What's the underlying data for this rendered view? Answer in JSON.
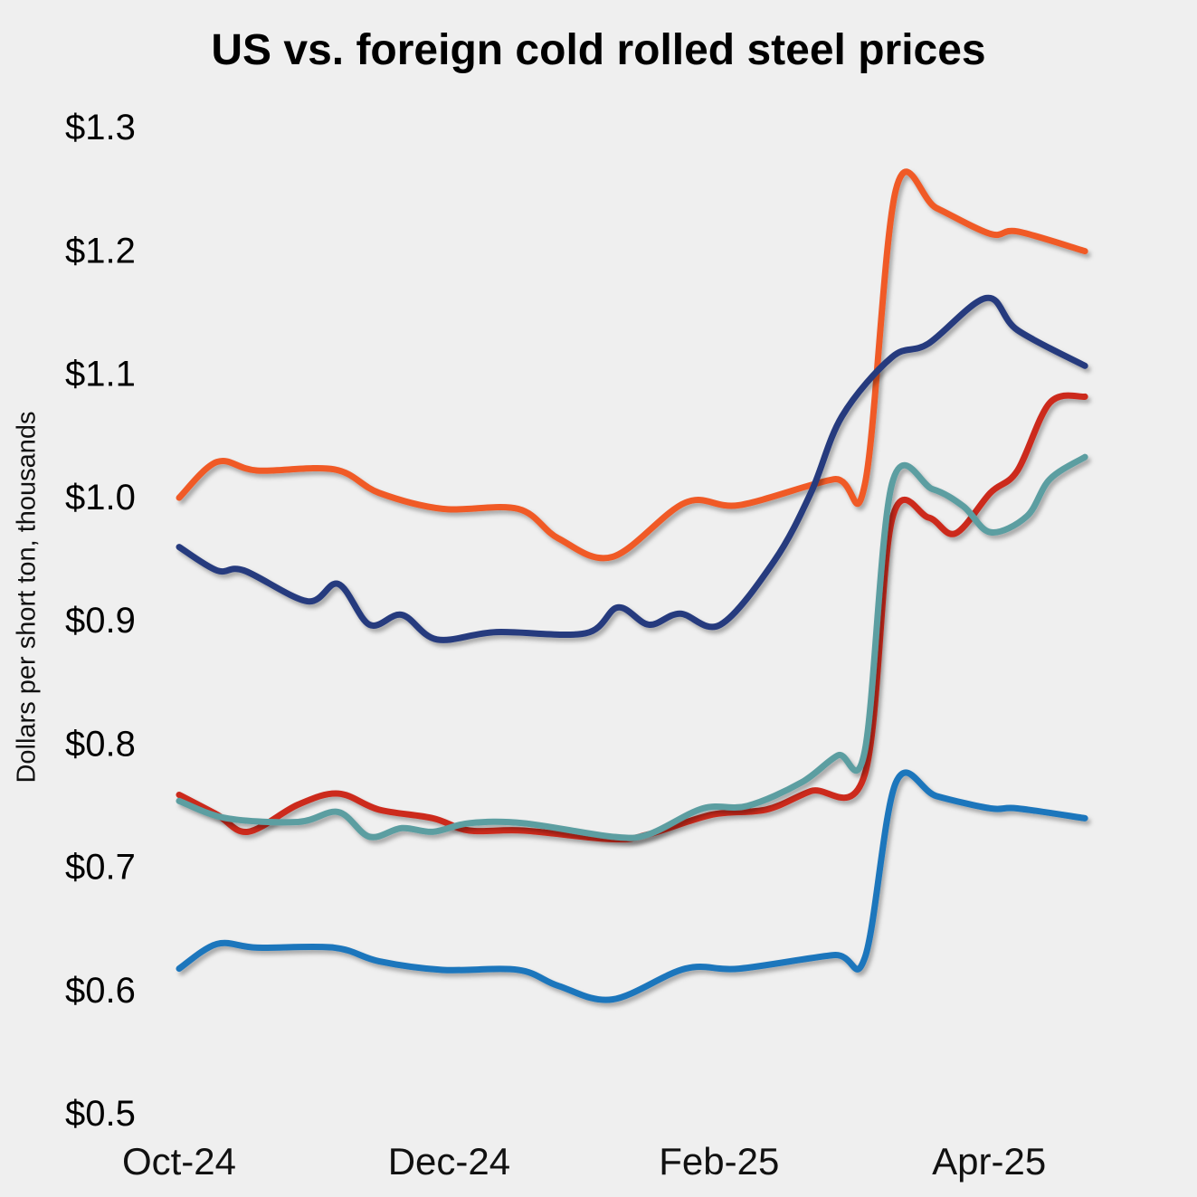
{
  "chart_data": {
    "type": "line",
    "title": "US vs. foreign cold rolled steel prices",
    "xlabel": "",
    "ylabel": "Dollars per short ton, thousands",
    "x_units": "months since Oct-24",
    "xlim": [
      0,
      6.71
    ],
    "ylim": [
      0.5,
      1.3
    ],
    "grid": false,
    "legend": "none",
    "yticks": [
      {
        "value": 1.3,
        "label": "$1.3"
      },
      {
        "value": 1.2,
        "label": "$1.2"
      },
      {
        "value": 1.1,
        "label": "$1.1"
      },
      {
        "value": 1.0,
        "label": "$1.0"
      },
      {
        "value": 0.9,
        "label": "$0.9"
      },
      {
        "value": 0.8,
        "label": "$0.8"
      },
      {
        "value": 0.7,
        "label": "$0.7"
      },
      {
        "value": 0.6,
        "label": "$0.6"
      },
      {
        "value": 0.5,
        "label": "$0.5"
      }
    ],
    "xticks": [
      {
        "value": 0,
        "label": "Oct-24"
      },
      {
        "value": 2,
        "label": "Dec-24"
      },
      {
        "value": 4,
        "label": "Feb-25"
      },
      {
        "value": 6,
        "label": "Apr-25"
      }
    ],
    "series": [
      {
        "color": "#f05a28",
        "x": [
          0,
          0.28,
          0.58,
          1.15,
          1.48,
          1.95,
          2.51,
          2.81,
          3.21,
          3.75,
          4.15,
          4.85,
          5.08,
          5.31,
          5.61,
          6.01,
          6.21,
          6.71
        ],
        "values": [
          0.999,
          1.028,
          1.021,
          1.022,
          1.003,
          0.99,
          0.99,
          0.966,
          0.951,
          0.995,
          0.993,
          1.014,
          1.01,
          1.249,
          1.234,
          1.213,
          1.215,
          1.199
        ]
      },
      {
        "color": "#253a7e",
        "x": [
          0,
          0.28,
          0.48,
          0.95,
          1.18,
          1.41,
          1.65,
          1.91,
          2.35,
          3.01,
          3.25,
          3.48,
          3.71,
          4.01,
          4.41,
          4.68,
          4.91,
          5.28,
          5.55,
          5.98,
          6.21,
          6.71
        ],
        "values": [
          0.959,
          0.94,
          0.94,
          0.915,
          0.929,
          0.896,
          0.904,
          0.884,
          0.89,
          0.889,
          0.91,
          0.896,
          0.905,
          0.896,
          0.948,
          1.003,
          1.065,
          1.113,
          1.124,
          1.161,
          1.135,
          1.106
        ]
      },
      {
        "color": "#cc2a1e",
        "x": [
          0,
          0.28,
          0.51,
          0.88,
          1.18,
          1.48,
          1.88,
          2.15,
          2.55,
          3.21,
          3.48,
          3.95,
          4.35,
          4.68,
          5.08,
          5.28,
          5.55,
          5.75,
          6.01,
          6.21,
          6.45,
          6.71
        ],
        "values": [
          0.758,
          0.742,
          0.728,
          0.75,
          0.759,
          0.746,
          0.739,
          0.729,
          0.729,
          0.722,
          0.726,
          0.742,
          0.746,
          0.761,
          0.775,
          0.981,
          0.983,
          0.97,
          1.003,
          1.021,
          1.076,
          1.081
        ]
      },
      {
        "color": "#5b9ea1",
        "x": [
          0,
          0.35,
          0.88,
          1.18,
          1.41,
          1.65,
          1.88,
          2.15,
          2.55,
          3.21,
          3.48,
          3.88,
          4.21,
          4.61,
          4.88,
          5.08,
          5.28,
          5.58,
          5.81,
          6.01,
          6.28,
          6.45,
          6.71
        ],
        "values": [
          0.753,
          0.739,
          0.736,
          0.744,
          0.724,
          0.731,
          0.728,
          0.735,
          0.735,
          0.724,
          0.726,
          0.747,
          0.749,
          0.768,
          0.79,
          0.794,
          1.01,
          1.006,
          0.992,
          0.971,
          0.984,
          1.014,
          1.032
        ]
      },
      {
        "color": "#1c76bc",
        "x": [
          0,
          0.28,
          0.58,
          1.15,
          1.48,
          1.95,
          2.51,
          2.81,
          3.21,
          3.75,
          4.15,
          4.85,
          5.08,
          5.31,
          5.61,
          6.01,
          6.21,
          6.71
        ],
        "values": [
          0.617,
          0.637,
          0.634,
          0.634,
          0.623,
          0.616,
          0.616,
          0.603,
          0.592,
          0.617,
          0.617,
          0.628,
          0.626,
          0.768,
          0.757,
          0.747,
          0.747,
          0.739
        ]
      }
    ]
  }
}
